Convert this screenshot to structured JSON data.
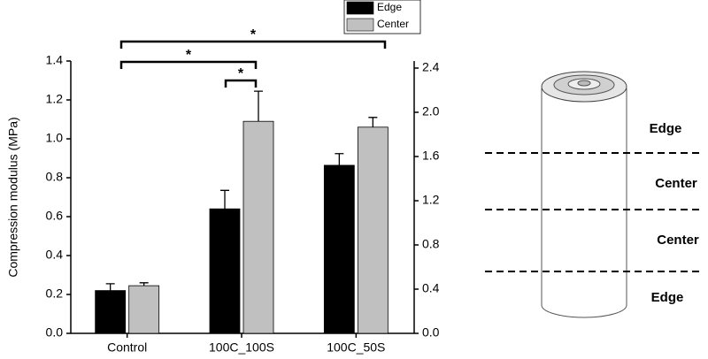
{
  "chart_data": {
    "type": "bar",
    "ylabel": "Compression modulus (MPa)",
    "categories": [
      "Control",
      "100C_100S",
      "100C_50S"
    ],
    "series": [
      {
        "name": "Edge",
        "color": "#000000",
        "values": [
          0.22,
          0.64,
          0.864
        ],
        "errors": [
          0.035,
          0.095,
          0.06
        ]
      },
      {
        "name": "Center",
        "color": "#c0c0c0",
        "values": [
          0.245,
          1.09,
          1.06
        ],
        "errors": [
          0.015,
          0.155,
          0.05
        ]
      }
    ],
    "ylim": [
      0,
      1.4
    ],
    "yticks": [
      {
        "value": 0,
        "label": "0.0"
      },
      0.2,
      0.4,
      0.6,
      0.8,
      {
        "value": 1,
        "label": "1.0"
      },
      1.2,
      1.4
    ],
    "y2lim": [
      0,
      2.464
    ],
    "y2ticks": [
      {
        "value": 0,
        "label": "0.0"
      },
      0.4,
      0.8,
      1.2,
      1.6,
      {
        "value": 2,
        "label": "2.0"
      },
      2.4
    ],
    "annotations": [
      "*",
      "*",
      "*"
    ]
  },
  "diagram": {
    "labels": [
      "Edge",
      "Center",
      "Center",
      "Edge"
    ]
  }
}
